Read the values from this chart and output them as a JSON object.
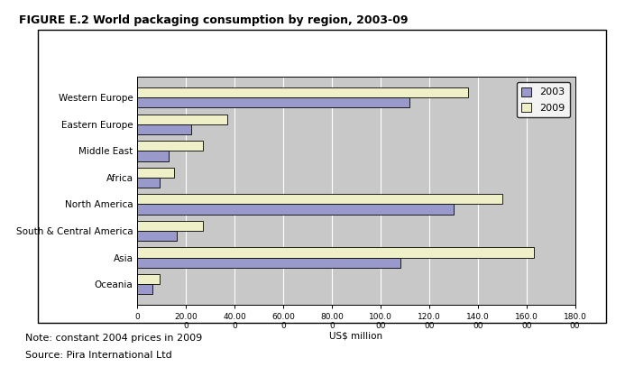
{
  "title": "FIGURE E.2 World packaging consumption by region, 2003-09",
  "categories": [
    "Western Europe",
    "Eastern Europe",
    "Middle East",
    "Africa",
    "North America",
    "South & Central America",
    "Asia",
    "Oceania"
  ],
  "values_2003": [
    112,
    22,
    13,
    9,
    130,
    16,
    108,
    6
  ],
  "values_2009": [
    136,
    37,
    27,
    15,
    150,
    27,
    163,
    9
  ],
  "color_2003": "#9999cc",
  "color_2009": "#efefc8",
  "xlabel": "US$ million",
  "xlim_max": 180,
  "xtick_positions": [
    0,
    20,
    40,
    60,
    80,
    100,
    120,
    140,
    160,
    180
  ],
  "legend_labels": [
    "2003",
    "2009"
  ],
  "note_line1": "Note: constant 2004 prices in 2009",
  "note_line2": "Source: Pira International Ltd",
  "plot_bg_color": "#c8c8c8",
  "border_color": "#000000",
  "bar_height": 0.38,
  "title_fontsize": 9,
  "axis_label_fontsize": 7.5,
  "tick_fontsize": 6.5,
  "note_fontsize": 8,
  "legend_fontsize": 8
}
